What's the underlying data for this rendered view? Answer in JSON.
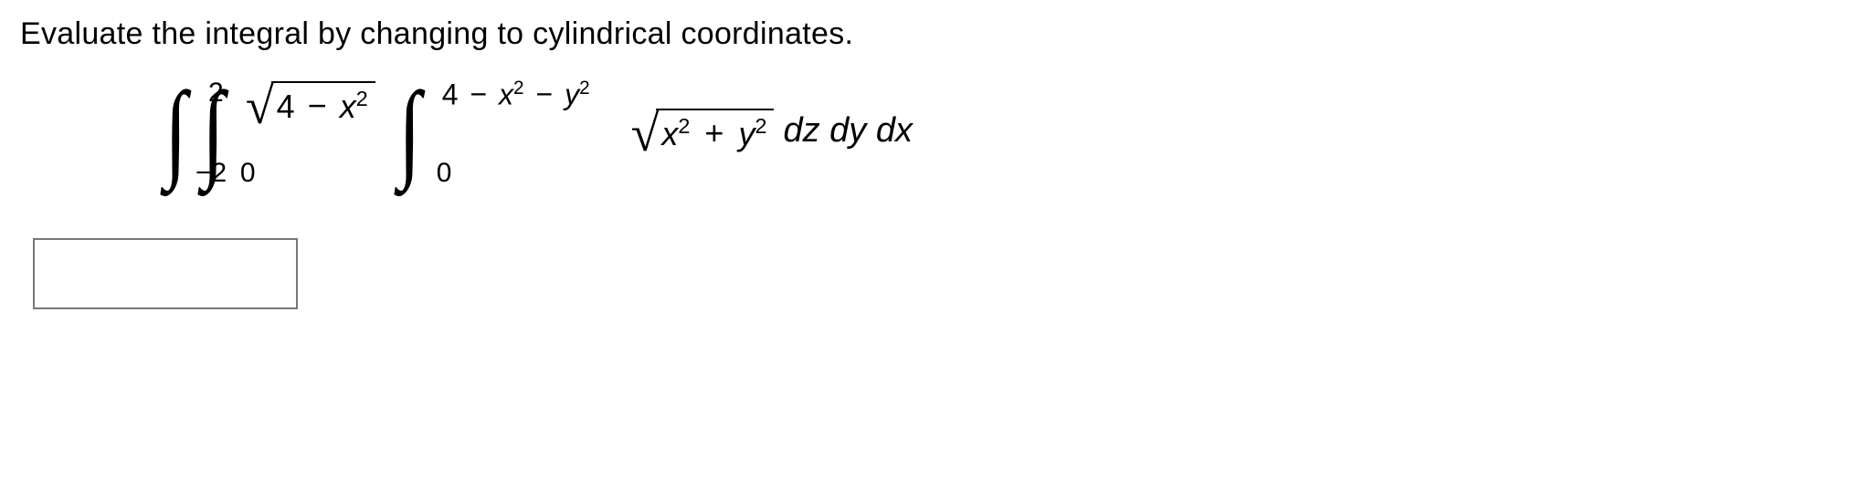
{
  "prompt_text": "Evaluate the integral by changing to cylindrical coordinates.",
  "integral": {
    "outer": {
      "lower": "−2",
      "upper": "2"
    },
    "middle": {
      "lower": "0",
      "upper_radicand_a": "4",
      "upper_radicand_b": "x",
      "upper_radicand_exp": "2"
    },
    "inner": {
      "lower": "0",
      "upper_a": "4",
      "upper_b": "x",
      "upper_bexp": "2",
      "upper_c": "y",
      "upper_cexp": "2"
    },
    "integrand": {
      "term1": "x",
      "exp1": "2",
      "term2": "y",
      "exp2": "2"
    },
    "differentials": "dz dy dx"
  },
  "colors": {
    "text": "#000000",
    "background": "#ffffff",
    "input_border": "#777777"
  },
  "answer_value": ""
}
